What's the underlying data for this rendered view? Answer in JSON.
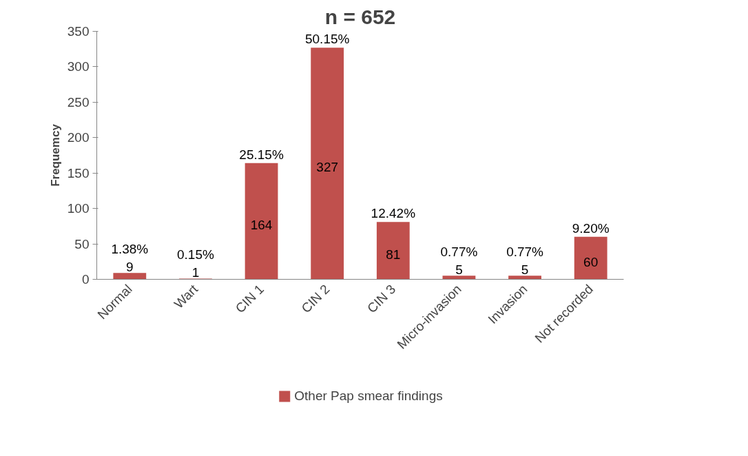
{
  "chart_data": {
    "type": "bar",
    "title": "n = 652",
    "ylabel": "Frequemcy",
    "categories": [
      "Normal",
      "Wart",
      "CIN 1",
      "CIN 2",
      "CIN 3",
      "Micro-invasion",
      "Invasion",
      "Not recorded"
    ],
    "series": [
      {
        "name": "Other Pap smear findings",
        "color": "#c0504d",
        "values": [
          9,
          1,
          164,
          327,
          81,
          5,
          5,
          60
        ]
      }
    ],
    "ylim": [
      0,
      350
    ],
    "yticks": [
      0,
      50,
      100,
      150,
      200,
      250,
      300,
      350
    ],
    "grid": false,
    "legend": "bottom",
    "data_labels": true,
    "annotations": [
      {
        "text": "1.38%",
        "x": "Normal",
        "y": 9
      },
      {
        "text": "0.15%",
        "x": "Wart",
        "y": 1
      },
      {
        "text": "25.15%",
        "x": "CIN 1",
        "y": 164
      },
      {
        "text": "50.15%",
        "x": "CIN 2",
        "y": 327
      },
      {
        "text": "12.42%",
        "x": "CIN 3",
        "y": 81
      },
      {
        "text": "0.77%",
        "x": "Micro-invasion",
        "y": 5
      },
      {
        "text": "0.77%",
        "x": "Invasion",
        "y": 5
      },
      {
        "text": "9.20%",
        "x": "Not recorded",
        "y": 60
      }
    ]
  }
}
